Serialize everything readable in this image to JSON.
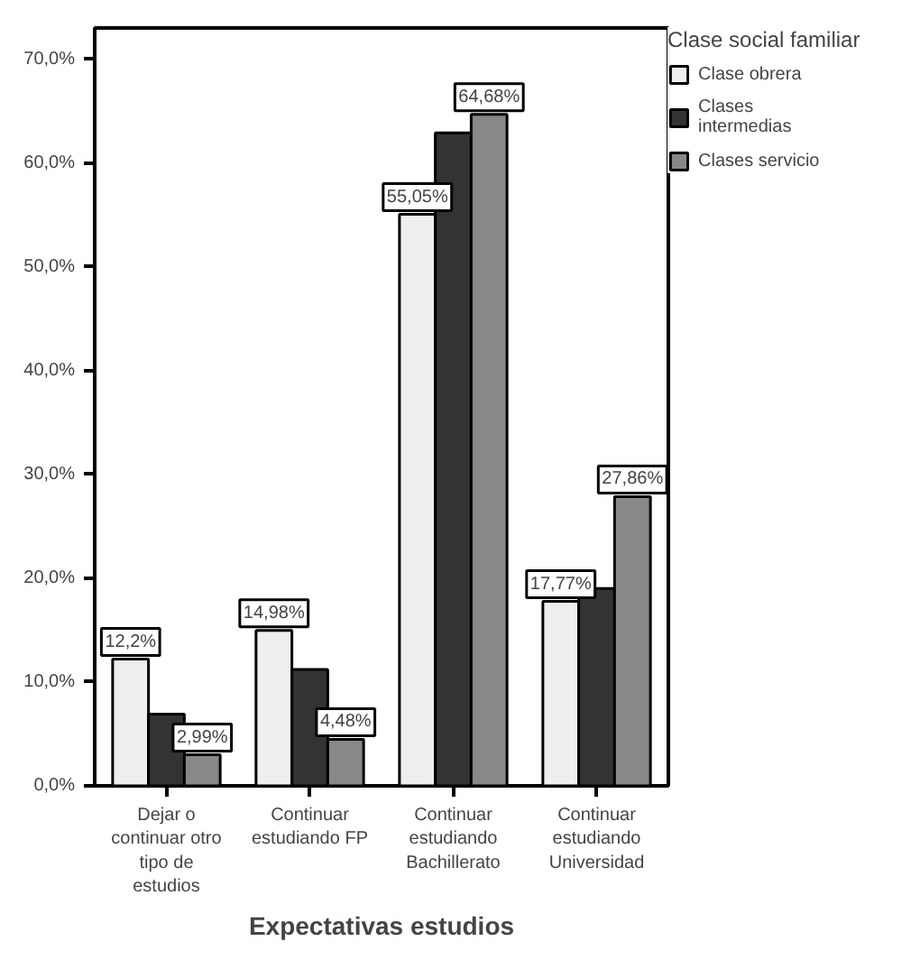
{
  "chart_data": {
    "type": "bar",
    "xlabel": "Expectativas estudios",
    "legend_title": "Clase social familiar",
    "categories": [
      "Dejar o\ncontinuar otro\ntipo de\nestudios",
      "Continuar\nestudiando FP",
      "Continuar\nestudiando\nBachillerato",
      "Continuar\nestudiando\nUniversidad"
    ],
    "series": [
      {
        "name": "Clase obrera",
        "color": "#eeeeee",
        "values": [
          12.2,
          14.98,
          55.05,
          17.77
        ],
        "value_labels": [
          "12,2%",
          "14,98%",
          "55,05%",
          "17,77%"
        ]
      },
      {
        "name": "Clases\nintermedias",
        "color": "#333333",
        "values": [
          6.9,
          11.2,
          62.9,
          19.0
        ]
      },
      {
        "name": "Clases servicio",
        "color": "#888888",
        "values": [
          2.99,
          4.48,
          64.68,
          27.86
        ],
        "value_labels": [
          "2,99%",
          "4,48%",
          "64,68%",
          "27,86%"
        ]
      }
    ],
    "ylim": [
      0,
      73
    ],
    "yticks": [
      {
        "value": 0,
        "label": "0,0%"
      },
      {
        "value": 10,
        "label": "10,0%"
      },
      {
        "value": 20,
        "label": "20,0%"
      },
      {
        "value": 30,
        "label": "30,0%"
      },
      {
        "value": 40,
        "label": "40,0%"
      },
      {
        "value": 50,
        "label": "50,0%"
      },
      {
        "value": 60,
        "label": "60,0%"
      },
      {
        "value": 70,
        "label": "70,0%"
      }
    ],
    "grid": false,
    "legend": "top right"
  }
}
